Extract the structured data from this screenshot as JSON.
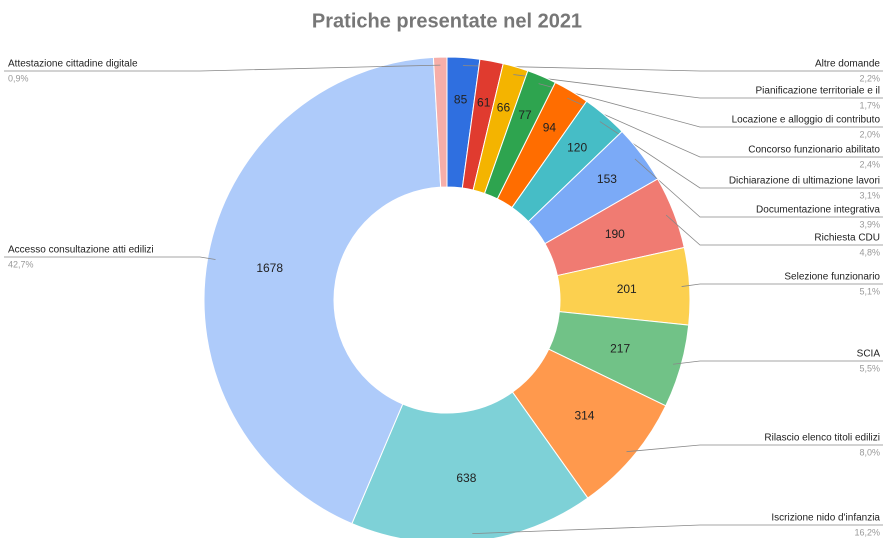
{
  "chart_data": {
    "type": "donut",
    "title": "Pratiche presentate nel 2021",
    "categories": [
      "Altre domande",
      null,
      "Pianificazione territoriale e il",
      "Locazione e alloggio di contributo",
      "Concorso funzionario abilitato",
      "Dichiarazione di ultimazione lavori",
      "Documentazione integrativa",
      "Richiesta CDU",
      "Selezione funzionario",
      "SCIA",
      "Rilascio elenco titoli edilizi",
      "Iscrizione nido d'infanzia",
      "Accesso consultazione atti edilizi",
      "Attestazione cittadine digitale"
    ],
    "values": [
      85,
      61,
      66,
      77,
      94,
      120,
      153,
      190,
      201,
      217,
      314,
      638,
      1678,
      35
    ],
    "percent_labels": [
      "2,2%",
      null,
      "1,7%",
      "2,0%",
      "2,4%",
      "3,1%",
      "3,9%",
      "4,8%",
      "5,1%",
      "5,5%",
      "8,0%",
      "16,2%",
      "42,7%",
      "0,9%"
    ],
    "colors": [
      "#2f6fe0",
      "#e03b2f",
      "#f4b400",
      "#2ea44f",
      "#ff6d00",
      "#46bdc6",
      "#7baaf7",
      "#f07b72",
      "#fcd04f",
      "#71c287",
      "#ff994d",
      "#7ed1d7",
      "#aecbfa",
      "#f6aea9"
    ]
  }
}
